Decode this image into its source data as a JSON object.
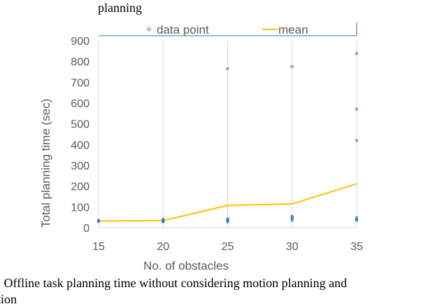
{
  "caption": {
    "top_fragment": "planning",
    "line1": ": Offline task planning time without considering motion planning and",
    "line2": "tion"
  },
  "colors": {
    "data_point": "#2E75B6",
    "mean": "#FFC000",
    "axis_text": "#595959",
    "grid": "#D9D9D9"
  },
  "chart_data": {
    "type": "scatter",
    "title": "",
    "xlabel": "No. of obstacles",
    "ylabel": "Total planning time (sec)",
    "xlim": [
      15,
      35
    ],
    "ylim": [
      0,
      900
    ],
    "xticks": [
      "15",
      "20",
      "25",
      "30",
      "35"
    ],
    "yticks": [
      "0",
      "100",
      "200",
      "300",
      "400",
      "500",
      "600",
      "700",
      "800",
      "900"
    ],
    "grid": "vertical",
    "legend": {
      "position": "top",
      "entries": [
        "data point",
        "mean"
      ]
    },
    "series": [
      {
        "name": "data point",
        "kind": "scatter",
        "points": [
          [
            15,
            30
          ],
          [
            15,
            33
          ],
          [
            15,
            35
          ],
          [
            20,
            28
          ],
          [
            20,
            32
          ],
          [
            20,
            35
          ],
          [
            20,
            40
          ],
          [
            25,
            28
          ],
          [
            25,
            33
          ],
          [
            25,
            37
          ],
          [
            25,
            42
          ],
          [
            25,
            765
          ],
          [
            30,
            35
          ],
          [
            30,
            42
          ],
          [
            30,
            50
          ],
          [
            30,
            55
          ],
          [
            30,
            775
          ],
          [
            35,
            35
          ],
          [
            35,
            40
          ],
          [
            35,
            48
          ],
          [
            35,
            420
          ],
          [
            35,
            570
          ],
          [
            35,
            838
          ]
        ]
      },
      {
        "name": "mean",
        "kind": "line",
        "x": [
          15,
          20,
          25,
          30,
          35
        ],
        "y": [
          32,
          34,
          107,
          114,
          211
        ]
      }
    ]
  }
}
